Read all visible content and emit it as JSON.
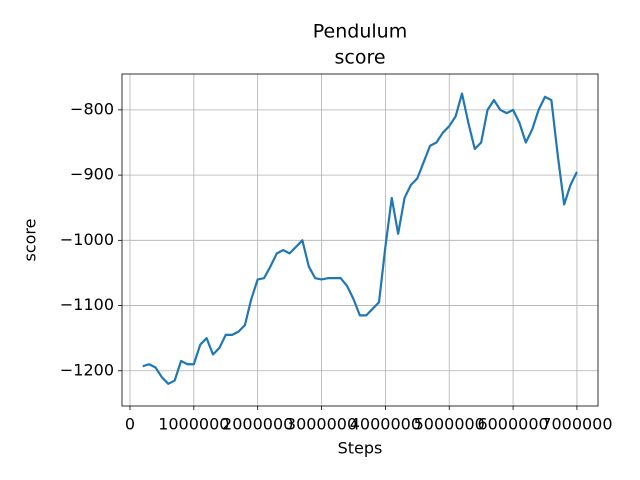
{
  "chart_data": {
    "type": "line",
    "title": "Pendulum",
    "subtitle": "score",
    "x_label": "Steps",
    "y_label": "score",
    "x": [
      200000,
      300000,
      400000,
      500000,
      600000,
      700000,
      800000,
      900000,
      1000000,
      1100000,
      1200000,
      1300000,
      1400000,
      1500000,
      1600000,
      1700000,
      1800000,
      1900000,
      2000000,
      2100000,
      2200000,
      2300000,
      2400000,
      2500000,
      2600000,
      2700000,
      2800000,
      2900000,
      3000000,
      3100000,
      3200000,
      3300000,
      3400000,
      3500000,
      3600000,
      3700000,
      3800000,
      3900000,
      4000000,
      4100000,
      4200000,
      4300000,
      4400000,
      4500000,
      4600000,
      4700000,
      4800000,
      4900000,
      5000000,
      5100000,
      5200000,
      5300000,
      5400000,
      5500000,
      5600000,
      5700000,
      5800000,
      5900000,
      6000000,
      6100000,
      6200000,
      6300000,
      6400000,
      6500000,
      6600000,
      6700000,
      6800000,
      6900000,
      7000000
    ],
    "series": [
      {
        "name": "score",
        "color": "#1f77b4",
        "values": [
          -1193,
          -1190,
          -1195,
          -1210,
          -1220,
          -1215,
          -1185,
          -1190,
          -1190,
          -1160,
          -1150,
          -1175,
          -1165,
          -1145,
          -1145,
          -1140,
          -1130,
          -1090,
          -1060,
          -1058,
          -1040,
          -1020,
          -1015,
          -1020,
          -1010,
          -1000,
          -1040,
          -1058,
          -1060,
          -1058,
          -1058,
          -1058,
          -1070,
          -1090,
          -1115,
          -1115,
          -1105,
          -1095,
          -1010,
          -935,
          -990,
          -935,
          -915,
          -905,
          -880,
          -855,
          -850,
          -835,
          -825,
          -810,
          -775,
          -820,
          -860,
          -850,
          -800,
          -785,
          -800,
          -805,
          -800,
          -820,
          -850,
          -830,
          -800,
          -780,
          -785,
          -870,
          -945,
          -915,
          -895
        ]
      }
    ],
    "xlim": [
      -125000,
      7330000
    ],
    "ylim": [
      -1254,
      -745
    ],
    "xticks": [
      0,
      1000000,
      2000000,
      3000000,
      4000000,
      5000000,
      6000000,
      7000000
    ],
    "yticks": [
      {
        "value": -1200,
        "label": "−1200"
      },
      {
        "value": -1100,
        "label": "−1100"
      },
      {
        "value": -1000,
        "label": "−1000"
      },
      {
        "value": -900,
        "label": "−900"
      },
      {
        "value": -800,
        "label": "−800"
      }
    ],
    "grid": true
  }
}
